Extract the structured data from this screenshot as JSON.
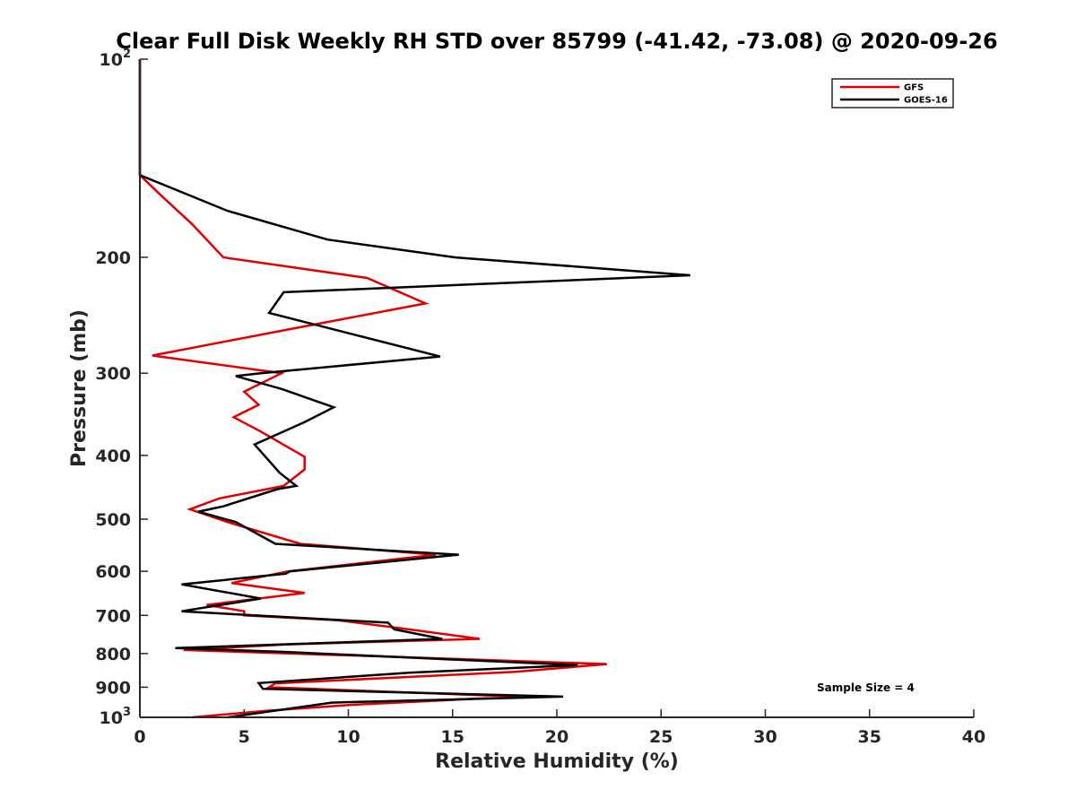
{
  "chart_data": {
    "type": "line",
    "title": "Clear Full Disk Weekly RH STD over 85799 (-41.42, -73.08) @ 2020-09-26",
    "xlabel": "Relative Humidity (%)",
    "ylabel": "Pressure (mb)",
    "xlim": [
      0,
      40
    ],
    "ylim": [
      100,
      1000
    ],
    "y_scale": "log",
    "y_reversed": true,
    "x_ticks": [
      "0",
      "5",
      "10",
      "15",
      "20",
      "25",
      "30",
      "35",
      "40"
    ],
    "y_ticks": [
      {
        "value": 100,
        "base": "10",
        "exp": "2"
      },
      {
        "value": 200,
        "label": "200"
      },
      {
        "value": 300,
        "label": "300"
      },
      {
        "value": 400,
        "label": "400"
      },
      {
        "value": 500,
        "label": "500"
      },
      {
        "value": 600,
        "label": "600"
      },
      {
        "value": 700,
        "label": "700"
      },
      {
        "value": 800,
        "label": "800"
      },
      {
        "value": 900,
        "label": "900"
      },
      {
        "value": 1000,
        "base": "10",
        "exp": "3"
      }
    ],
    "grid": false,
    "legend_position": "top-right",
    "annotation": "Sample Size = 4",
    "series": [
      {
        "name": "GFS",
        "color": "#e00000",
        "points": [
          [
            0,
            100
          ],
          [
            0,
            115
          ],
          [
            0,
            125
          ],
          [
            0,
            135
          ],
          [
            0,
            150
          ],
          [
            1.1,
            162
          ],
          [
            2.5,
            178
          ],
          [
            4,
            200
          ],
          [
            10.9,
            215
          ],
          [
            13.7,
            235
          ],
          [
            6.4,
            260
          ],
          [
            0.6,
            282
          ],
          [
            6.8,
            300
          ],
          [
            5.0,
            320
          ],
          [
            5.7,
            335
          ],
          [
            4.5,
            350
          ],
          [
            5.8,
            368
          ],
          [
            7.9,
            402
          ],
          [
            7.9,
            420
          ],
          [
            6.9,
            445
          ],
          [
            3.8,
            465
          ],
          [
            2.4,
            483
          ],
          [
            4.2,
            505
          ],
          [
            7.7,
            545
          ],
          [
            14.2,
            566
          ],
          [
            7.1,
            600
          ],
          [
            4.4,
            625
          ],
          [
            7.9,
            647
          ],
          [
            3.2,
            675
          ],
          [
            5.0,
            690
          ],
          [
            5.0,
            700
          ],
          [
            9.5,
            712
          ],
          [
            12.5,
            732
          ],
          [
            16.3,
            760
          ],
          [
            7.0,
            775
          ],
          [
            2.1,
            790
          ],
          [
            12.5,
            810
          ],
          [
            22.4,
            830
          ],
          [
            18.0,
            853
          ],
          [
            6.5,
            888
          ],
          [
            6.2,
            900
          ],
          [
            11.0,
            912
          ],
          [
            18.2,
            930
          ],
          [
            10.2,
            957
          ],
          [
            6.0,
            978
          ],
          [
            2.5,
            1000
          ]
        ]
      },
      {
        "name": "GOES-16",
        "color": "#000000",
        "points": [
          [
            0,
            100
          ],
          [
            0,
            115
          ],
          [
            0,
            125
          ],
          [
            0,
            135
          ],
          [
            0,
            150
          ],
          [
            4.2,
            170
          ],
          [
            9.0,
            188
          ],
          [
            15.1,
            200
          ],
          [
            26.4,
            213
          ],
          [
            6.9,
            226
          ],
          [
            6.2,
            243
          ],
          [
            14.4,
            283
          ],
          [
            5.8,
            300
          ],
          [
            4.6,
            303
          ],
          [
            6.8,
            317
          ],
          [
            9.3,
            338
          ],
          [
            7.9,
            356
          ],
          [
            5.5,
            385
          ],
          [
            6.7,
            425
          ],
          [
            7.5,
            445
          ],
          [
            6.6,
            450
          ],
          [
            4.0,
            478
          ],
          [
            2.8,
            487
          ],
          [
            4.6,
            505
          ],
          [
            6.5,
            545
          ],
          [
            15.3,
            566
          ],
          [
            7.2,
            600
          ],
          [
            7.0,
            605
          ],
          [
            2.0,
            628
          ],
          [
            5.8,
            660
          ],
          [
            2.0,
            690
          ],
          [
            5.5,
            700
          ],
          [
            11.9,
            718
          ],
          [
            12.2,
            735
          ],
          [
            14.5,
            760
          ],
          [
            1.7,
            785
          ],
          [
            6.8,
            795
          ],
          [
            21.0,
            833
          ],
          [
            13.0,
            855
          ],
          [
            5.7,
            887
          ],
          [
            5.9,
            905
          ],
          [
            20.3,
            930
          ],
          [
            9.2,
            950
          ],
          [
            4.2,
            1000
          ]
        ]
      }
    ]
  }
}
